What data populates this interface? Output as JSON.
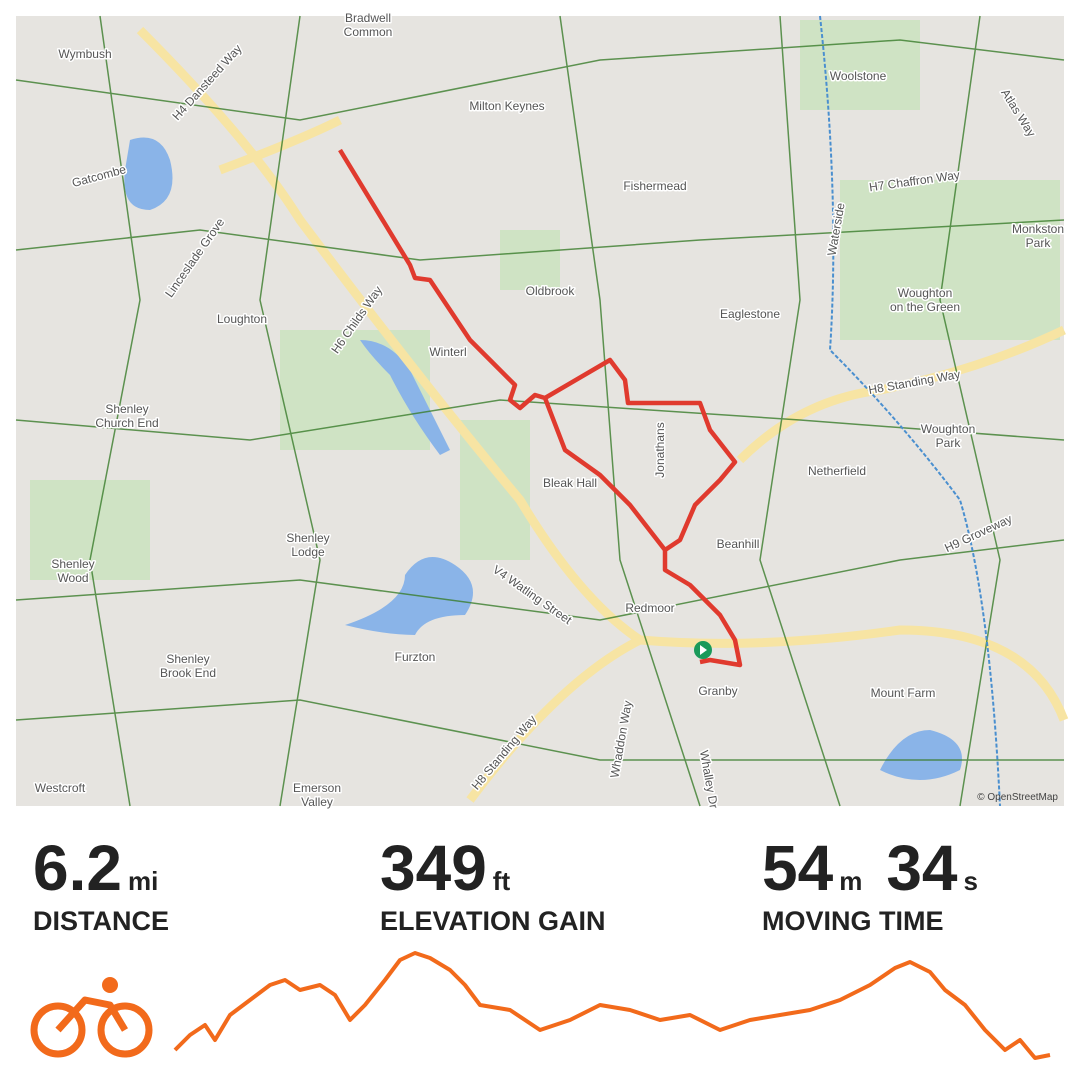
{
  "map_labels": [
    [
      "Bradwell",
      "Common"
    ],
    [
      "Wymbush"
    ],
    [
      "Milton Keynes"
    ],
    [
      "Woolstone"
    ],
    [
      "H4 Dansteed Way"
    ],
    [
      "Atlas Way"
    ],
    [
      "Gatcombe"
    ],
    [
      "Fishermead"
    ],
    [
      "H7 Chaffron Way"
    ],
    [
      "Monkston",
      "Park"
    ],
    [
      "Linceslade Grove"
    ],
    [
      "Waterside"
    ],
    [
      "Oldbrook"
    ],
    [
      "Eaglestone"
    ],
    [
      "Woughton",
      "on the Green"
    ],
    [
      "Loughton"
    ],
    [
      "H6 Childs Way"
    ],
    [
      "Winterl"
    ],
    [
      "H8 Standing Way"
    ],
    [
      "Shenley",
      "Church End"
    ],
    [
      "Jonathans"
    ],
    [
      "Woughton",
      "Park"
    ],
    [
      "Netherfield"
    ],
    [
      "Bleak Hall"
    ],
    [
      "Beanhill"
    ],
    [
      "H9 Groveway"
    ],
    [
      "Shenley",
      "Lodge"
    ],
    [
      "Shenley",
      "Wood"
    ],
    [
      "V4 Watling Street"
    ],
    [
      "Redmoor"
    ],
    [
      "Furzton"
    ],
    [
      "Shenley",
      "Brook End"
    ],
    [
      "Granby"
    ],
    [
      "Mount Farm"
    ],
    [
      "Whaddon Way"
    ],
    [
      "Whalley Dr"
    ],
    [
      "H8 Standing Way"
    ],
    [
      "Westcroft"
    ],
    [
      "Emerson",
      "Valley"
    ]
  ],
  "attribution": "© OpenStreetMap",
  "stats": [
    {
      "parts": [
        {
          "value": 6.2,
          "unit": "mi"
        }
      ],
      "label": "DISTANCE"
    },
    {
      "parts": [
        {
          "value": 349,
          "unit": "ft"
        }
      ],
      "label": "ELEVATION GAIN"
    },
    {
      "parts": [
        {
          "value": 54,
          "unit": "m"
        },
        {
          "value": 34,
          "unit": "s"
        }
      ],
      "label": "MOVING TIME"
    }
  ]
}
